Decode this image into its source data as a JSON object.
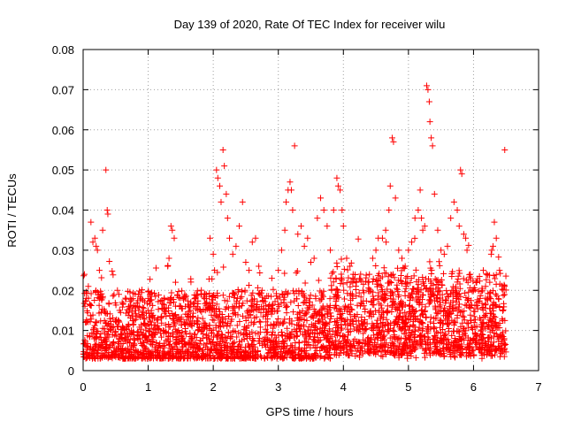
{
  "chart_data": {
    "type": "scatter",
    "title": "Day 139 of 2020, Rate Of TEC Index for receiver wilu",
    "xlabel": "GPS time / hours",
    "ylabel": "ROTI / TECUs",
    "xlim": [
      0,
      7
    ],
    "ylim": [
      0,
      0.08
    ],
    "xticks": [
      0,
      1,
      2,
      3,
      4,
      5,
      6,
      7
    ],
    "xtick_labels": [
      "0",
      "1",
      "2",
      "3",
      "4",
      "5",
      "6",
      "7"
    ],
    "yticks": [
      0,
      0.01,
      0.02,
      0.03,
      0.04,
      0.05,
      0.06,
      0.07,
      0.08
    ],
    "ytick_labels": [
      "0",
      "0.01",
      "0.02",
      "0.03",
      "0.04",
      "0.05",
      "0.06",
      "0.07",
      "0.08"
    ],
    "grid": true,
    "marker": "+",
    "series": [
      {
        "name": "ROTI",
        "color": "#ff0000",
        "points": [
          [
            0.02,
            0.024
          ],
          [
            0.05,
            0.018
          ],
          [
            0.08,
            0.021
          ],
          [
            0.12,
            0.037
          ],
          [
            0.15,
            0.032
          ],
          [
            0.18,
            0.033
          ],
          [
            0.2,
            0.031
          ],
          [
            0.22,
            0.03
          ],
          [
            0.25,
            0.025
          ],
          [
            0.3,
            0.035
          ],
          [
            0.35,
            0.05
          ],
          [
            0.37,
            0.04
          ],
          [
            0.38,
            0.039
          ],
          [
            0.55,
            0.019
          ],
          [
            0.6,
            0.017
          ],
          [
            0.7,
            0.016
          ],
          [
            0.8,
            0.015
          ],
          [
            0.9,
            0.014
          ],
          [
            1.0,
            0.018
          ],
          [
            1.05,
            0.015
          ],
          [
            1.15,
            0.013
          ],
          [
            1.3,
            0.026
          ],
          [
            1.32,
            0.028
          ],
          [
            1.35,
            0.036
          ],
          [
            1.37,
            0.035
          ],
          [
            1.4,
            0.033
          ],
          [
            1.42,
            0.022
          ],
          [
            1.5,
            0.016
          ],
          [
            1.6,
            0.014
          ],
          [
            1.7,
            0.016
          ],
          [
            1.8,
            0.015
          ],
          [
            1.9,
            0.017
          ],
          [
            1.95,
            0.033
          ],
          [
            2.0,
            0.029
          ],
          [
            2.02,
            0.025
          ],
          [
            2.05,
            0.05
          ],
          [
            2.07,
            0.048
          ],
          [
            2.1,
            0.046
          ],
          [
            2.12,
            0.042
          ],
          [
            2.15,
            0.055
          ],
          [
            2.17,
            0.051
          ],
          [
            2.2,
            0.044
          ],
          [
            2.22,
            0.038
          ],
          [
            2.25,
            0.033
          ],
          [
            2.3,
            0.029
          ],
          [
            2.35,
            0.031
          ],
          [
            2.4,
            0.036
          ],
          [
            2.45,
            0.042
          ],
          [
            2.5,
            0.027
          ],
          [
            2.55,
            0.025
          ],
          [
            2.6,
            0.032
          ],
          [
            2.65,
            0.033
          ],
          [
            2.7,
            0.026
          ],
          [
            2.75,
            0.02
          ],
          [
            2.8,
            0.018
          ],
          [
            2.85,
            0.016
          ],
          [
            2.9,
            0.023
          ],
          [
            3.0,
            0.025
          ],
          [
            3.05,
            0.03
          ],
          [
            3.1,
            0.035
          ],
          [
            3.12,
            0.042
          ],
          [
            3.15,
            0.045
          ],
          [
            3.18,
            0.047
          ],
          [
            3.2,
            0.045
          ],
          [
            3.22,
            0.04
          ],
          [
            3.25,
            0.056
          ],
          [
            3.3,
            0.034
          ],
          [
            3.35,
            0.036
          ],
          [
            3.4,
            0.031
          ],
          [
            3.45,
            0.033
          ],
          [
            3.5,
            0.027
          ],
          [
            3.55,
            0.028
          ],
          [
            3.6,
            0.038
          ],
          [
            3.65,
            0.043
          ],
          [
            3.7,
            0.04
          ],
          [
            3.75,
            0.036
          ],
          [
            3.8,
            0.03
          ],
          [
            3.85,
            0.04
          ],
          [
            3.9,
            0.048
          ],
          [
            3.92,
            0.046
          ],
          [
            3.95,
            0.045
          ],
          [
            3.98,
            0.04
          ],
          [
            4.0,
            0.036
          ],
          [
            4.05,
            0.028
          ],
          [
            4.1,
            0.026
          ],
          [
            4.15,
            0.024
          ],
          [
            4.2,
            0.022
          ],
          [
            4.3,
            0.02
          ],
          [
            4.4,
            0.024
          ],
          [
            4.45,
            0.028
          ],
          [
            4.5,
            0.03
          ],
          [
            4.6,
            0.033
          ],
          [
            4.65,
            0.035
          ],
          [
            4.7,
            0.04
          ],
          [
            4.72,
            0.046
          ],
          [
            4.75,
            0.058
          ],
          [
            4.77,
            0.057
          ],
          [
            4.8,
            0.043
          ],
          [
            4.85,
            0.03
          ],
          [
            4.9,
            0.028
          ],
          [
            4.95,
            0.026
          ],
          [
            5.0,
            0.03
          ],
          [
            5.05,
            0.032
          ],
          [
            5.1,
            0.038
          ],
          [
            5.15,
            0.04
          ],
          [
            5.18,
            0.045
          ],
          [
            5.2,
            0.038
          ],
          [
            5.22,
            0.035
          ],
          [
            5.25,
            0.036
          ],
          [
            5.28,
            0.071
          ],
          [
            5.3,
            0.07
          ],
          [
            5.32,
            0.067
          ],
          [
            5.33,
            0.062
          ],
          [
            5.35,
            0.058
          ],
          [
            5.37,
            0.056
          ],
          [
            5.4,
            0.044
          ],
          [
            5.45,
            0.035
          ],
          [
            5.5,
            0.03
          ],
          [
            5.55,
            0.029
          ],
          [
            5.6,
            0.031
          ],
          [
            5.65,
            0.038
          ],
          [
            5.7,
            0.042
          ],
          [
            5.75,
            0.04
          ],
          [
            5.78,
            0.036
          ],
          [
            5.8,
            0.05
          ],
          [
            5.82,
            0.049
          ],
          [
            5.85,
            0.034
          ],
          [
            5.88,
            0.033
          ],
          [
            5.9,
            0.03
          ],
          [
            5.95,
            0.024
          ],
          [
            6.0,
            0.02
          ],
          [
            6.05,
            0.022
          ],
          [
            6.1,
            0.018
          ],
          [
            6.15,
            0.025
          ],
          [
            6.2,
            0.024
          ],
          [
            6.25,
            0.022
          ],
          [
            6.28,
            0.03
          ],
          [
            6.3,
            0.031
          ],
          [
            6.32,
            0.037
          ],
          [
            6.35,
            0.033
          ],
          [
            6.4,
            0.025
          ],
          [
            6.45,
            0.015
          ],
          [
            6.48,
            0.055
          ]
        ]
      }
    ],
    "dense_band": {
      "x_range": [
        0,
        6.5
      ],
      "y_typical_range": [
        0.003,
        0.02
      ],
      "description_note": "dense cloud of points along the bottom of the plot"
    }
  }
}
